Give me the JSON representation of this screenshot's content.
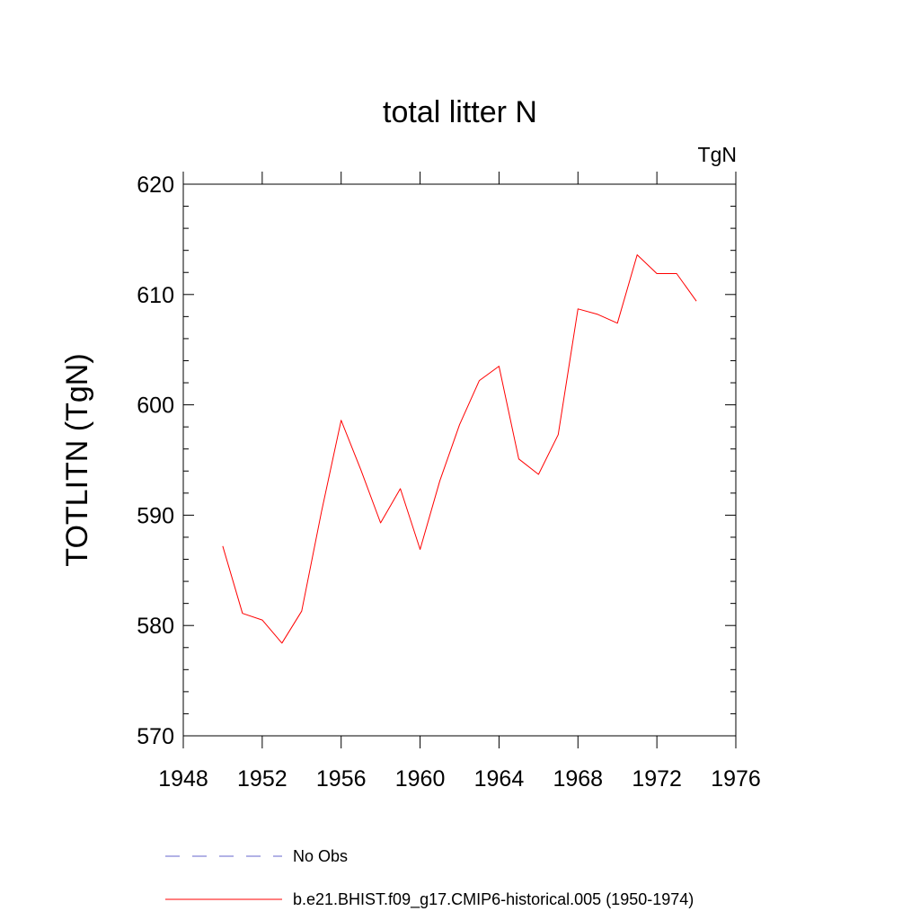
{
  "chart_data": {
    "type": "line",
    "title": "total litter N",
    "units_label": "TgN",
    "ylabel": "TOTLITN  (TgN)",
    "xlabel": "",
    "xlim": [
      1948,
      1976
    ],
    "ylim": [
      570,
      620
    ],
    "x_ticks": [
      1948,
      1952,
      1956,
      1960,
      1964,
      1968,
      1972,
      1976
    ],
    "y_ticks": [
      570,
      580,
      590,
      600,
      610,
      620
    ],
    "x_tick_labels": [
      "1948",
      "1952",
      "1956",
      "1960",
      "1964",
      "1968",
      "1972",
      "1976"
    ],
    "y_tick_labels": [
      "570",
      "580",
      "590",
      "600",
      "610",
      "620"
    ],
    "grid": false,
    "legend_position": "bottom",
    "series": [
      {
        "name": "b.e21.BHIST.f09_g17.CMIP6-historical.005 (1950-1974)",
        "color": "#ff0000",
        "style": "solid",
        "x": [
          1950,
          1951,
          1952,
          1953,
          1954,
          1955,
          1956,
          1957,
          1958,
          1959,
          1960,
          1961,
          1962,
          1963,
          1964,
          1965,
          1966,
          1967,
          1968,
          1969,
          1970,
          1971,
          1972,
          1973,
          1974
        ],
        "y": [
          587.2,
          581.1,
          580.5,
          578.4,
          581.3,
          590.3,
          598.6,
          594.1,
          589.3,
          592.4,
          586.9,
          593.1,
          598.2,
          602.2,
          603.5,
          595.1,
          593.7,
          597.3,
          608.7,
          608.2,
          607.4,
          613.6,
          611.9,
          611.9,
          609.4
        ]
      }
    ],
    "legend": [
      {
        "label": "No Obs",
        "color": "#6666cc",
        "style": "dashed"
      },
      {
        "label": "b.e21.BHIST.f09_g17.CMIP6-historical.005 (1950-1974)",
        "color": "#ff0000",
        "style": "solid"
      }
    ]
  }
}
